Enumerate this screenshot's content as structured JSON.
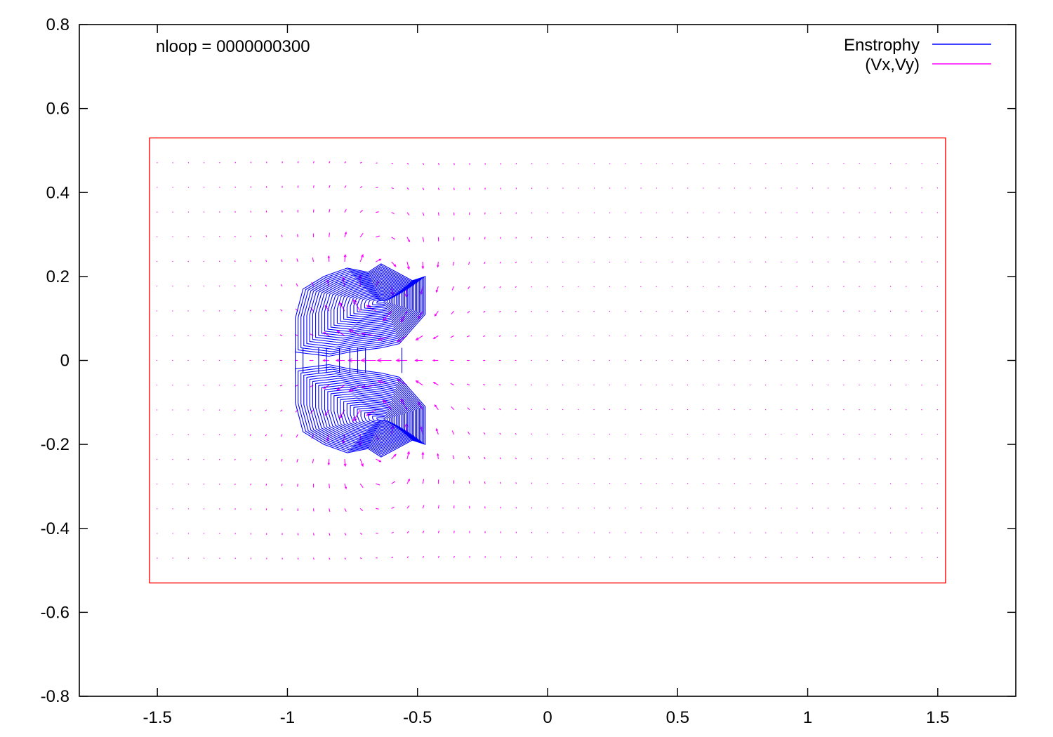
{
  "chart_data": {
    "type": "contour+vector",
    "annotation": "nloop = 0000000300",
    "xlim": [
      -1.8,
      1.8
    ],
    "ylim": [
      -0.8,
      0.8
    ],
    "xticks": [
      -1.5,
      -1,
      -0.5,
      0,
      0.5,
      1,
      1.5
    ],
    "xtick_labels": [
      "-1.5",
      "-1",
      "-0.5",
      "0",
      "0.5",
      "1",
      "1.5"
    ],
    "yticks": [
      -0.8,
      -0.6,
      -0.4,
      -0.2,
      0,
      0.2,
      0.4,
      0.6,
      0.8
    ],
    "ytick_labels": [
      "-0.8",
      "-0.6",
      "-0.4",
      "-0.2",
      "0",
      "0.2",
      "0.4",
      "0.6",
      "0.8"
    ],
    "legend_position": "top-right",
    "series": [
      {
        "name": "Enstrophy",
        "kind": "contour",
        "color": "#0000ff",
        "vortex_centers": [
          [
            -0.64,
            0.14
          ],
          [
            -0.64,
            -0.14
          ]
        ],
        "approx_extent_x": [
          -0.97,
          -0.5
        ],
        "approx_extent_y": [
          -0.24,
          0.24
        ]
      },
      {
        "name": "(Vx,Vy)",
        "kind": "vector",
        "color": "#ff00ff",
        "grid_x_range": [
          -1.5,
          1.5
        ],
        "grid_y_range": [
          -0.47,
          0.47
        ],
        "grid_nx": 51,
        "grid_ny": 17
      }
    ],
    "domain_box": {
      "color": "#ff0000",
      "x": [
        -1.53,
        1.53
      ],
      "y": [
        -0.53,
        0.53
      ]
    },
    "grid": false
  }
}
